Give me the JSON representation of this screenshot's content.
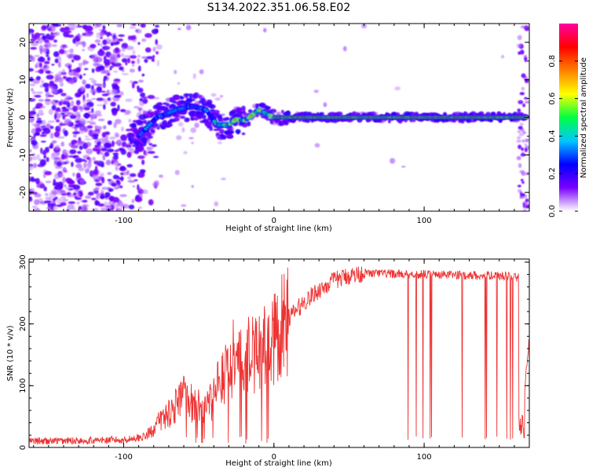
{
  "figure_title": "S134.2022.351.06.58.E02",
  "chart_data": [
    {
      "type": "heatmap",
      "title": "",
      "xlabel": "Height of straight line (km)",
      "ylabel": "Frequency (Hz)",
      "xlim": [
        -163,
        170
      ],
      "ylim": [
        -25,
        25
      ],
      "xticks": [
        "-100",
        "0",
        "100"
      ],
      "yticks": [
        "-20",
        "-10",
        "0",
        "10",
        "20"
      ],
      "colorbar": {
        "label": "Normalized spectral amplitude",
        "range": [
          0,
          1
        ],
        "ticks": [
          "0.0",
          "0.2",
          "0.4",
          "0.6",
          "0.8"
        ],
        "colors": [
          "#ffffff",
          "#7a00ff",
          "#0000ff",
          "#00c8ff",
          "#00ff40",
          "#ffff00",
          "#ff8000",
          "#ff0000",
          "#ff00a0"
        ]
      },
      "trace": {
        "description_points_x": [
          -90,
          -78,
          -65,
          -55,
          -45,
          -38,
          -30,
          -25,
          -20,
          -15,
          -10,
          -5,
          0,
          10,
          50,
          100,
          165
        ],
        "description_points_y": [
          -5,
          0,
          2,
          3,
          2,
          -2,
          -2,
          -0.5,
          -1,
          0.5,
          2,
          1,
          0,
          0,
          0,
          0,
          0
        ]
      }
    },
    {
      "type": "line",
      "title": "",
      "xlabel": "Height of straight line (km)",
      "ylabel": "SNR (10 * v/v)",
      "xlim": [
        -163,
        170
      ],
      "ylim": [
        0,
        305
      ],
      "xticks": [
        "-100",
        "0",
        "100"
      ],
      "yticks": [
        "0",
        "100",
        "200",
        "300"
      ],
      "series": [
        {
          "color": "#ee3333",
          "envelope_x": [
            -163,
            -100,
            -85,
            -75,
            -60,
            -45,
            -35,
            -20,
            -10,
            0,
            10,
            20,
            30,
            40,
            50,
            60,
            100,
            150,
            163,
            165,
            170
          ],
          "envelope_y": [
            10,
            12,
            18,
            45,
            80,
            60,
            110,
            140,
            160,
            175,
            210,
            235,
            255,
            270,
            278,
            282,
            280,
            278,
            275,
            40,
            180
          ]
        }
      ]
    }
  ]
}
